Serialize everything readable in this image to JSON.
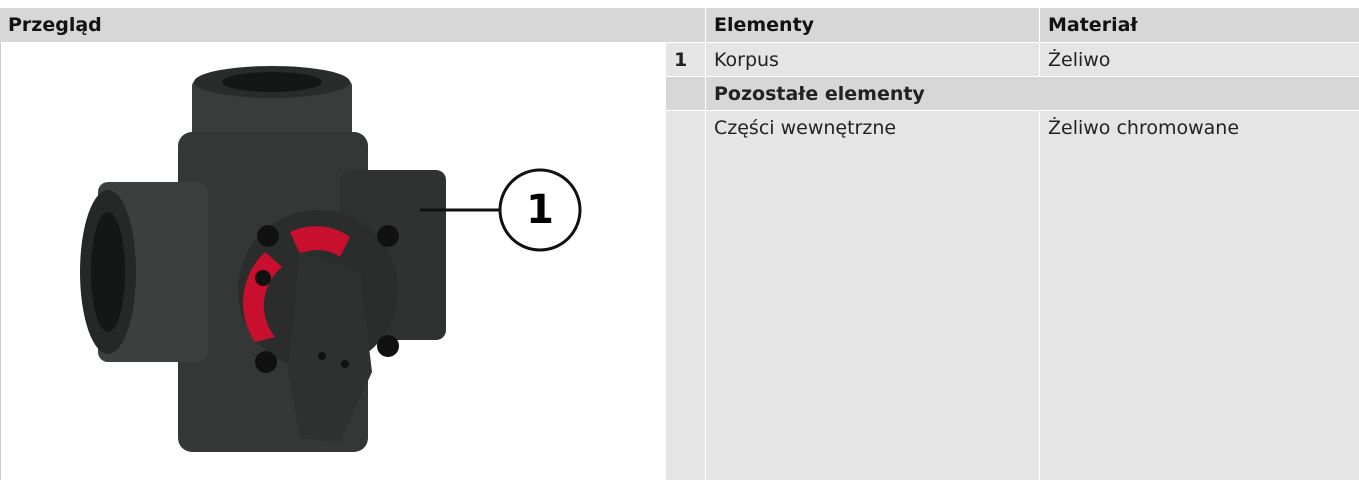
{
  "overview": {
    "title": "Przegląd",
    "callout": "1"
  },
  "table": {
    "headers": [
      "Elementy",
      "Materiał"
    ],
    "rows": [
      [
        "1",
        "Korpus",
        "Żeliwo"
      ]
    ],
    "section": "Pozostałe elementy",
    "section_rows": [
      [
        "Części wewnętrzne",
        "Żeliwo chromowane"
      ]
    ]
  }
}
